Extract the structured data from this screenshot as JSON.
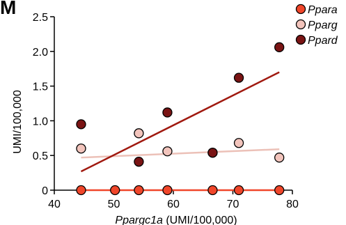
{
  "panel_letter": "M",
  "chart_data": {
    "type": "scatter",
    "x_axis": {
      "label_italic": "Ppargc1a",
      "label_rest": " (UMI/100,000)",
      "min": 40,
      "max": 80,
      "ticks": [
        40,
        50,
        60,
        70,
        80
      ],
      "tick_labels": [
        "40",
        "50",
        "60",
        "70",
        "80"
      ]
    },
    "y_axis": {
      "label": "UMI/100,000",
      "min": 0,
      "max": 2.5,
      "ticks": [
        0,
        0.5,
        1.0,
        1.5,
        2.0,
        2.5
      ],
      "tick_labels": [
        "0",
        "0.5",
        "1.0",
        "1.5",
        "2.0",
        "2.5"
      ]
    },
    "grid": false,
    "legend_position": "top-right",
    "series": [
      {
        "name": "Ppara",
        "color": "#f0462a",
        "line_color": "#f0462a",
        "x": [
          44.5,
          50.2,
          54.2,
          59.0,
          66.6,
          71.0,
          77.8
        ],
        "y": [
          0,
          0,
          0,
          0,
          0,
          0,
          0
        ],
        "fit": {
          "x": [
            44.5,
            77.8
          ],
          "y": [
            0,
            0
          ]
        }
      },
      {
        "name": "Pparg",
        "color": "#f2c4bc",
        "line_color": "#ecc1b8",
        "x": [
          44.5,
          54.2,
          59.0,
          66.6,
          71.0,
          77.8
        ],
        "y": [
          0.6,
          0.82,
          0.56,
          0.54,
          0.68,
          0.47
        ],
        "fit": {
          "x": [
            44.5,
            77.8
          ],
          "y": [
            0.47,
            0.59
          ]
        }
      },
      {
        "name": "Ppard",
        "color": "#7a1414",
        "line_color": "#a0190f",
        "x": [
          44.5,
          54.2,
          59.0,
          66.6,
          71.0,
          77.8
        ],
        "y": [
          0.95,
          0.41,
          1.12,
          0.54,
          1.62,
          2.06
        ],
        "fit": {
          "x": [
            44.5,
            77.8
          ],
          "y": [
            0.27,
            1.7
          ]
        }
      }
    ]
  }
}
